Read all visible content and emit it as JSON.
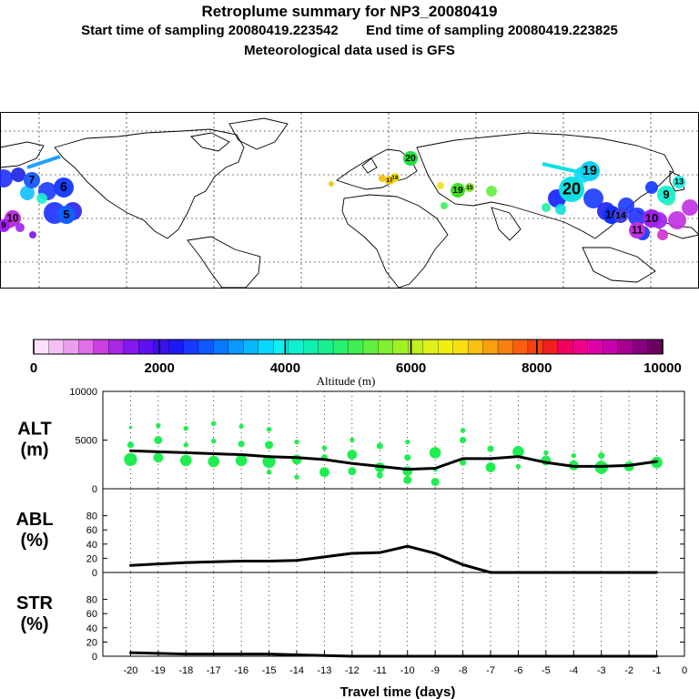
{
  "header": {
    "title": "Retroplume summary for NP3_20080419",
    "start_label": "Start time of sampling 20080419.223542",
    "end_label": "End time of sampling 20080419.223825",
    "met_label": "Meteorological data used is GFS"
  },
  "map": {
    "labels": [
      {
        "text": "6",
        "color": "#1e40ff"
      },
      {
        "text": "7",
        "color": "#2060ff"
      },
      {
        "text": "5",
        "color": "#1060ff"
      },
      {
        "text": "10",
        "color": "#c030e0"
      },
      {
        "text": "9",
        "color": "#a020f0"
      },
      {
        "text": "20",
        "color": "#20e040"
      },
      {
        "text": "18",
        "color": "#f0e020"
      },
      {
        "text": "17",
        "color": "#f0c000"
      },
      {
        "text": "19",
        "color": "#40e020"
      },
      {
        "text": "15",
        "color": "#80e020"
      },
      {
        "text": "20",
        "color": "#10e0e0"
      },
      {
        "text": "19",
        "color": "#10d0f0"
      },
      {
        "text": "16",
        "color": "#1030ff"
      },
      {
        "text": "14",
        "color": "#4040e0"
      },
      {
        "text": "9",
        "color": "#20f0d0"
      },
      {
        "text": "10",
        "color": "#a020f0"
      },
      {
        "text": "11",
        "color": "#c030e0"
      },
      {
        "text": "13",
        "color": "#20f0e0"
      }
    ]
  },
  "colorbar": {
    "tick_labels": [
      "0",
      "2000",
      "4000",
      "6000",
      "8000",
      "10000"
    ],
    "label": "Altitude (m)",
    "colors": [
      "#fbe0fb",
      "#f5c0f5",
      "#eaa0ef",
      "#e070ea",
      "#cc40e0",
      "#a828e6",
      "#8418ee",
      "#6010f0",
      "#3a10ee",
      "#1e18f4",
      "#1838ff",
      "#1058ff",
      "#0878ff",
      "#0898ff",
      "#08b8ff",
      "#08d8ff",
      "#10f0f0",
      "#10f0d0",
      "#10f0b0",
      "#18f090",
      "#28f070",
      "#40f050",
      "#60f040",
      "#80f030",
      "#a0f028",
      "#c0f020",
      "#e0f018",
      "#f0f010",
      "#f8e010",
      "#f8c010",
      "#f8a010",
      "#f88010",
      "#f86010",
      "#f84010",
      "#f02020",
      "#f00060",
      "#f0008c",
      "#e000a8",
      "#c800b0",
      "#a80090",
      "#880080",
      "#6a0060"
    ]
  },
  "chart_data": [
    {
      "type": "line",
      "name": "ALT",
      "ylabel": "ALT\n(m)",
      "ylabel_lines": [
        "ALT",
        "(m)"
      ],
      "ylim": [
        0,
        10000
      ],
      "yticks": [
        "0",
        "5000",
        "10000"
      ],
      "x": [
        -20,
        -19,
        -18,
        -17,
        -16,
        -15,
        -14,
        -13,
        -12,
        -11,
        -10,
        -9,
        -8,
        -7,
        -6,
        -5,
        -4,
        -3,
        -2,
        -1
      ],
      "values": [
        3900,
        3800,
        3700,
        3600,
        3500,
        3300,
        3200,
        3000,
        2600,
        2300,
        2000,
        2100,
        3100,
        3100,
        3300,
        2700,
        2300,
        2300,
        2400,
        2800
      ],
      "scatter_color": "#20ee50",
      "scatter": [
        [
          -20,
          3000,
          8
        ],
        [
          -20,
          4500,
          4
        ],
        [
          -20,
          6300,
          2
        ],
        [
          -19,
          3200,
          6
        ],
        [
          -19,
          5000,
          5
        ],
        [
          -19,
          6500,
          3
        ],
        [
          -18,
          2900,
          7
        ],
        [
          -18,
          4500,
          3
        ],
        [
          -18,
          6200,
          3
        ],
        [
          -17,
          2800,
          7
        ],
        [
          -17,
          4900,
          3
        ],
        [
          -17,
          6700,
          3
        ],
        [
          -16,
          2900,
          7
        ],
        [
          -16,
          4600,
          4
        ],
        [
          -16,
          6400,
          3
        ],
        [
          -15,
          2800,
          8
        ],
        [
          -15,
          1700,
          3
        ],
        [
          -15,
          4500,
          5
        ],
        [
          -15,
          6100,
          3
        ],
        [
          -14,
          3000,
          6
        ],
        [
          -14,
          4800,
          3
        ],
        [
          -14,
          1200,
          3
        ],
        [
          -13,
          1700,
          6
        ],
        [
          -13,
          3200,
          4
        ],
        [
          -13,
          4200,
          3
        ],
        [
          -12,
          3500,
          6
        ],
        [
          -12,
          1800,
          5
        ],
        [
          -12,
          5000,
          3
        ],
        [
          -11,
          2200,
          6
        ],
        [
          -11,
          1400,
          4
        ],
        [
          -11,
          4400,
          4
        ],
        [
          -10,
          1800,
          6
        ],
        [
          -10,
          900,
          5
        ],
        [
          -10,
          3200,
          4
        ],
        [
          -10,
          4800,
          3
        ],
        [
          -9,
          3700,
          7
        ],
        [
          -9,
          700,
          5
        ],
        [
          -9,
          2000,
          3
        ],
        [
          -8,
          2700,
          4
        ],
        [
          -8,
          5000,
          4
        ],
        [
          -8,
          6000,
          3
        ],
        [
          -7,
          2200,
          6
        ],
        [
          -7,
          4100,
          4
        ],
        [
          -6,
          3800,
          7
        ],
        [
          -6,
          2300,
          3
        ],
        [
          -5,
          2900,
          6
        ],
        [
          -5,
          3700,
          3
        ],
        [
          -4,
          2400,
          6
        ],
        [
          -4,
          3400,
          3
        ],
        [
          -3,
          2200,
          8
        ],
        [
          -3,
          3400,
          4
        ],
        [
          -2,
          2300,
          6
        ],
        [
          -1,
          2700,
          7
        ]
      ]
    },
    {
      "type": "line",
      "name": "ABL",
      "ylabel": "ABL\n(%)",
      "ylabel_lines": [
        "ABL",
        "(%)"
      ],
      "ylim": [
        0,
        100
      ],
      "yticks": [
        "0",
        "20",
        "40",
        "60",
        "80"
      ],
      "x": [
        -20,
        -19,
        -18,
        -17,
        -16,
        -15,
        -14,
        -13,
        -12,
        -11,
        -10,
        -9,
        -8,
        -7,
        -6,
        -5,
        -4,
        -3,
        -2,
        -1
      ],
      "values": [
        10,
        12,
        14,
        15,
        16,
        16,
        17,
        22,
        27,
        28,
        37,
        27,
        11,
        0,
        0,
        0,
        0,
        0,
        0,
        0
      ]
    },
    {
      "type": "line",
      "name": "STR",
      "ylabel": "STR\n(%)",
      "ylabel_lines": [
        "STR",
        "(%)"
      ],
      "ylim": [
        0,
        100
      ],
      "yticks": [
        "0",
        "20",
        "40",
        "60",
        "80"
      ],
      "x": [
        -20,
        -19,
        -18,
        -17,
        -16,
        -15,
        -14,
        -13,
        -12,
        -11,
        -10,
        -9,
        -8,
        -7,
        -6,
        -5,
        -4,
        -3,
        -2,
        -1
      ],
      "values": [
        5,
        4,
        3,
        3,
        3,
        3,
        2,
        1,
        0,
        0,
        0,
        0,
        0,
        0,
        0,
        0,
        0,
        0,
        0,
        0
      ]
    }
  ],
  "xaxis": {
    "label": "Travel time (days)",
    "ticks": [
      "-20",
      "-19",
      "-18",
      "-17",
      "-16",
      "-15",
      "-14",
      "-13",
      "-12",
      "-11",
      "-10",
      "-9",
      "-8",
      "-7",
      "-6",
      "-5",
      "-4",
      "-3",
      "-2",
      "-1",
      "0"
    ]
  }
}
